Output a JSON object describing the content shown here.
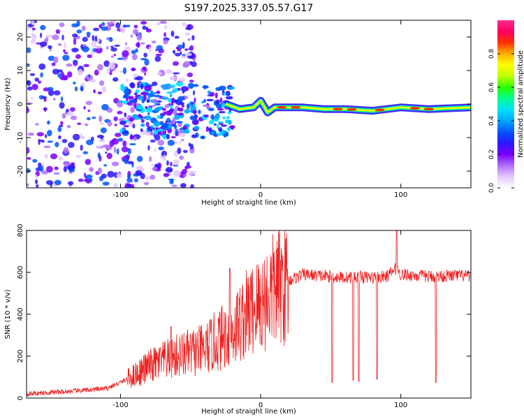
{
  "page_title": "S197.2025.337.05.57.G17",
  "colors": {
    "snr_line": "#ee2020",
    "axis": "#000000",
    "colorscale": [
      "#ffffff",
      "#e4c8ff",
      "#b070ff",
      "#7a00ff",
      "#2a16ff",
      "#0055ff",
      "#00a8ff",
      "#00e0ff",
      "#00ff90",
      "#2cff00",
      "#bfff00",
      "#ffff00",
      "#ffb000",
      "#ff3000",
      "#ff0060",
      "#ff2a90"
    ]
  },
  "chart_data": [
    {
      "type": "heatmap",
      "title": "S197.2025.337.05.57.G17",
      "xlabel": "Height of straight line (km)",
      "ylabel": "Frequency (Hz)",
      "xlim": [
        -167,
        150
      ],
      "ylim": [
        -25,
        25
      ],
      "x_ticks": [
        -100,
        0,
        100
      ],
      "x_tick_labels": [
        "-100",
        "0",
        "100"
      ],
      "y_ticks": [
        -20,
        -10,
        0,
        10,
        20
      ],
      "y_tick_labels": [
        "-20",
        "-10",
        "0",
        "10",
        "20"
      ],
      "colorbar": {
        "label": "Normalized spectral amplitude",
        "range": [
          0,
          1
        ],
        "ticks": [
          0,
          0.2,
          0.4,
          0.6,
          0.8
        ],
        "tick_labels": [
          "0.0",
          "0.2",
          "0.4",
          "0.6",
          "0.8"
        ]
      },
      "description_points": {
        "ridge_x": [
          -25,
          -15,
          -5,
          0,
          5,
          10,
          20,
          30,
          45,
          60,
          80,
          100,
          120,
          150
        ],
        "ridge_frequency": [
          0.0,
          -1.5,
          -1.0,
          1.0,
          -2.5,
          -1.0,
          -1.0,
          -1.0,
          -1.5,
          -1.5,
          -2.0,
          -1.0,
          -1.5,
          -1.0
        ]
      }
    },
    {
      "type": "line",
      "xlabel": "Height of straight line (km)",
      "ylabel": "SNR (10 * v/v)",
      "xlim": [
        -167,
        150
      ],
      "ylim": [
        0,
        800
      ],
      "x_ticks": [
        -100,
        0,
        100
      ],
      "x_tick_labels": [
        "-100",
        "0",
        "100"
      ],
      "y_ticks": [
        0,
        200,
        400,
        600,
        800
      ],
      "y_tick_labels": [
        "0",
        "200",
        "400",
        "600",
        "800"
      ],
      "series": [
        {
          "name": "SNR",
          "x": [
            -167,
            -140,
            -110,
            -95,
            -80,
            -60,
            -40,
            -30,
            -20,
            -10,
            0,
            10,
            20,
            30,
            40,
            50,
            60,
            70,
            80,
            90,
            97,
            100,
            110,
            120,
            130,
            140,
            150
          ],
          "y": [
            20,
            30,
            45,
            90,
            150,
            200,
            230,
            280,
            320,
            400,
            450,
            520,
            560,
            590,
            585,
            580,
            575,
            578,
            575,
            580,
            620,
            590,
            585,
            580,
            582,
            585,
            580
          ],
          "dips": [
            {
              "x": 51,
              "y": 75
            },
            {
              "x": 66,
              "y": 85
            },
            {
              "x": 70,
              "y": 80
            },
            {
              "x": 83,
              "y": 90
            },
            {
              "x": 125,
              "y": 75
            }
          ],
          "spikes": [
            {
              "x": 97,
              "y": 800
            },
            {
              "x": -22,
              "y": 620
            },
            {
              "x": -64,
              "y": 340
            }
          ]
        }
      ]
    }
  ]
}
